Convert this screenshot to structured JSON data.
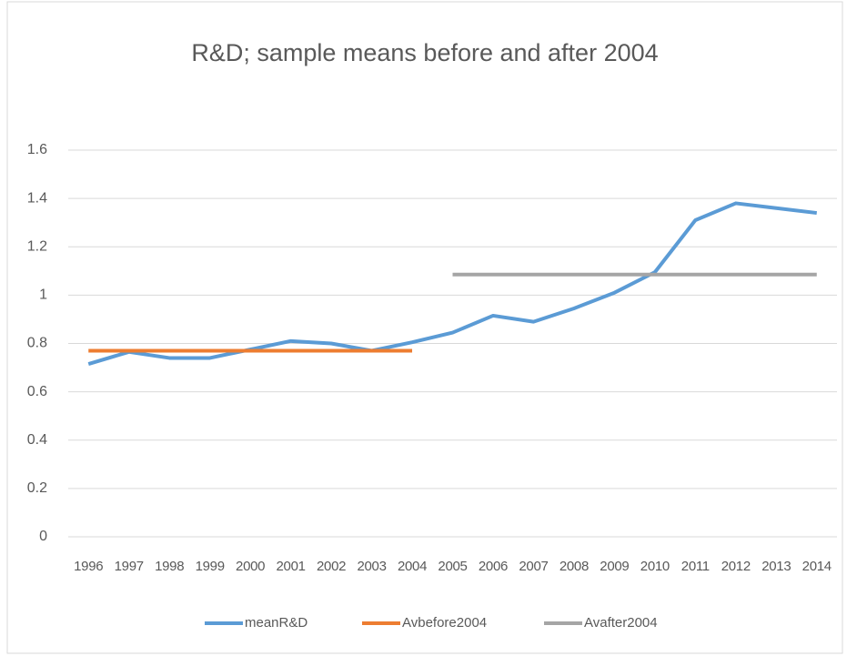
{
  "chart_data": {
    "type": "line",
    "title": "R&D; sample means before and after 2004",
    "categories": [
      "1996",
      "1997",
      "1998",
      "1999",
      "2000",
      "2001",
      "2002",
      "2003",
      "2004",
      "2005",
      "2006",
      "2007",
      "2008",
      "2009",
      "2010",
      "2011",
      "2012",
      "2013",
      "2014"
    ],
    "series": [
      {
        "name": "meanR&D",
        "color": "#5b9bd5",
        "values": [
          0.715,
          0.765,
          0.74,
          0.74,
          0.775,
          0.81,
          0.8,
          0.77,
          0.805,
          0.845,
          0.915,
          0.89,
          0.945,
          1.01,
          1.095,
          1.31,
          1.38,
          1.36,
          1.34
        ]
      },
      {
        "name": "Avbefore2004",
        "color": "#ed7d31",
        "values": [
          0.77,
          0.77,
          0.77,
          0.77,
          0.77,
          0.77,
          0.77,
          0.77,
          0.77,
          null,
          null,
          null,
          null,
          null,
          null,
          null,
          null,
          null,
          null
        ]
      },
      {
        "name": "Avafter2004",
        "color": "#a5a5a5",
        "values": [
          null,
          null,
          null,
          null,
          null,
          null,
          null,
          null,
          null,
          1.085,
          1.085,
          1.085,
          1.085,
          1.085,
          1.085,
          1.085,
          1.085,
          1.085,
          1.085
        ]
      }
    ],
    "ylim": [
      0,
      1.6
    ],
    "yticks": [
      0,
      0.2,
      0.4,
      0.6,
      0.8,
      1,
      1.2,
      1.4,
      1.6
    ],
    "grid": true,
    "legend": "bottom"
  }
}
